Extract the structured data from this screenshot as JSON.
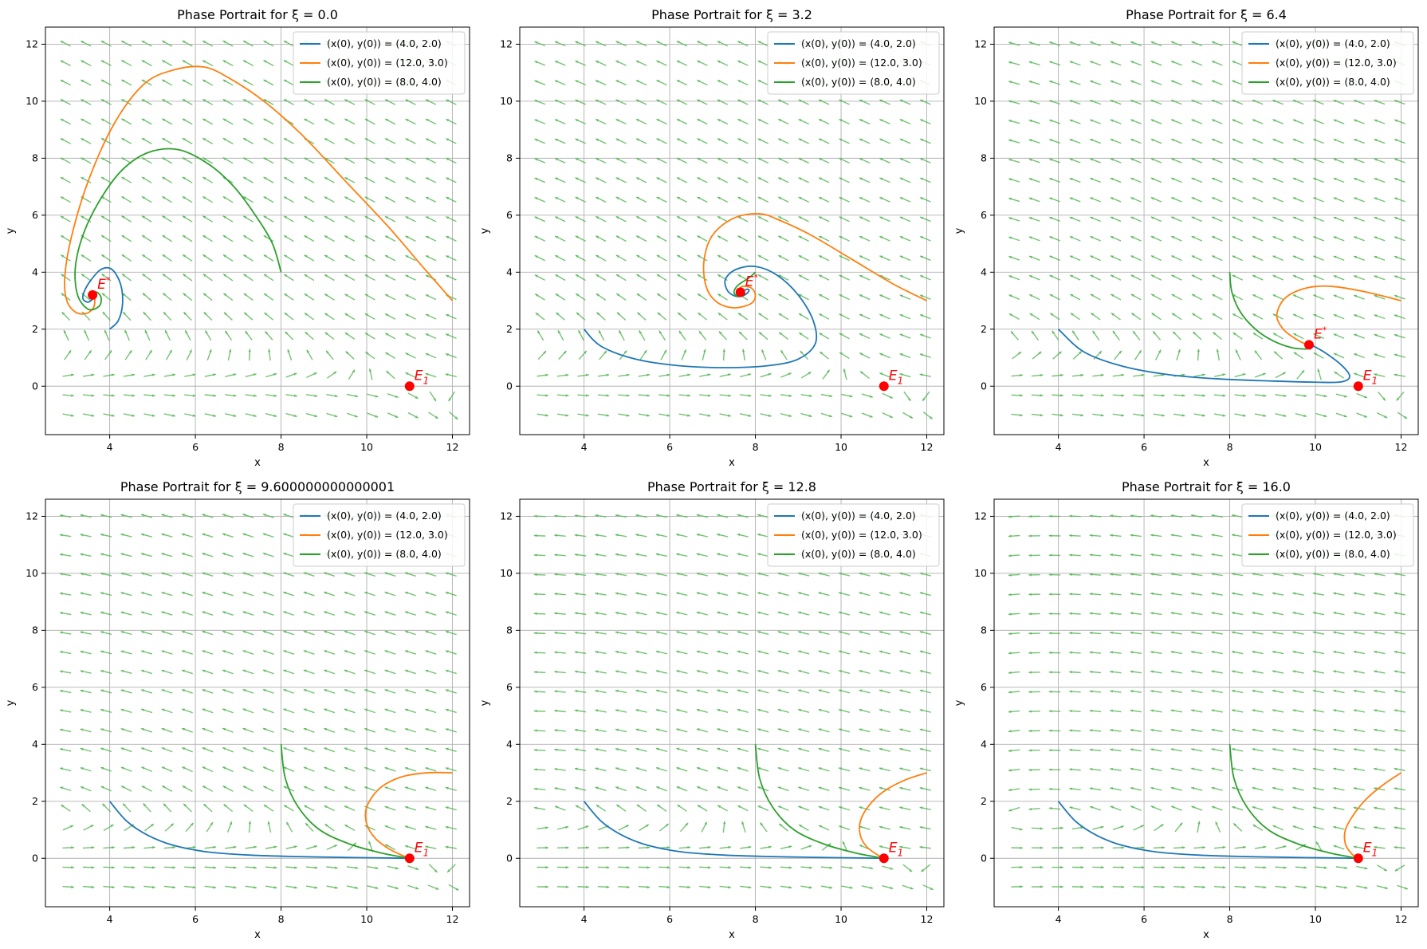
{
  "figure": {
    "colors": {
      "x0_4_y0_2": "#1f77b4",
      "x0_12_y0_3": "#ff7f0e",
      "x0_8_y0_4": "#2ca02c",
      "quiver": "#5cb85c",
      "equilibrium": "#ff0000",
      "grid": "#b0b0b0"
    }
  },
  "chart_data": [
    {
      "type": "line",
      "title": "Phase Portrait for ξ = 0.0",
      "xlabel": "x",
      "ylabel": "y",
      "xlim": [
        2.5,
        12.4
      ],
      "ylim": [
        -1.7,
        12.6
      ],
      "xticks": [
        "4",
        "6",
        "8",
        "10",
        "12"
      ],
      "yticks": [
        "0",
        "2",
        "4",
        "6",
        "8",
        "10",
        "12"
      ],
      "grid": true,
      "legend_location": "upper right",
      "series": [
        {
          "name": "(x(0), y(0)) = (4.0, 2.0)",
          "color": "#1f77b4",
          "x": [
            4.0,
            4.2,
            4.3,
            4.25,
            4.05,
            3.8,
            3.55,
            3.4,
            3.38,
            3.5,
            3.62,
            3.6,
            3.55
          ],
          "y": [
            2.0,
            2.3,
            2.9,
            3.6,
            4.1,
            4.1,
            3.7,
            3.3,
            3.05,
            2.95,
            3.1,
            3.25,
            3.2
          ]
        },
        {
          "name": "(x(0), y(0)) = (12.0, 3.0)",
          "color": "#ff7f0e",
          "x": [
            12.0,
            11.3,
            10.5,
            9.5,
            8.5,
            7.6,
            6.8,
            6.2,
            5.5,
            4.8,
            4.1,
            3.5,
            3.1,
            2.95,
            3.0,
            3.2,
            3.45,
            3.62,
            3.65,
            3.6
          ],
          "y": [
            3.0,
            4.2,
            5.6,
            7.2,
            8.8,
            10.0,
            10.8,
            11.2,
            11.1,
            10.6,
            9.2,
            7.2,
            5.2,
            3.8,
            3.0,
            2.6,
            2.55,
            2.75,
            3.05,
            3.2
          ]
        },
        {
          "name": "(x(0), y(0)) = (8.0, 4.0)",
          "color": "#2ca02c",
          "x": [
            8.0,
            7.8,
            7.4,
            6.9,
            6.3,
            5.6,
            4.9,
            4.3,
            3.8,
            3.4,
            3.2,
            3.25,
            3.5,
            3.75,
            3.8,
            3.7,
            3.6
          ],
          "y": [
            4.0,
            5.0,
            6.0,
            7.0,
            7.8,
            8.3,
            8.2,
            7.6,
            6.6,
            5.4,
            4.2,
            3.2,
            2.7,
            2.8,
            3.1,
            3.3,
            3.2
          ]
        }
      ],
      "equilibria": [
        {
          "label": "E*",
          "x": 3.6,
          "y": 3.2
        },
        {
          "label": "E1",
          "x": 11.0,
          "y": 0.0
        }
      ]
    },
    {
      "type": "line",
      "title": "Phase Portrait for ξ = 3.2",
      "xlabel": "x",
      "ylabel": "y",
      "xlim": [
        2.5,
        12.4
      ],
      "ylim": [
        -1.7,
        12.6
      ],
      "xticks": [
        "4",
        "6",
        "8",
        "10",
        "12"
      ],
      "yticks": [
        "0",
        "2",
        "4",
        "6",
        "8",
        "10",
        "12"
      ],
      "grid": true,
      "legend_location": "upper right",
      "series": [
        {
          "name": "(x(0), y(0)) = (4.0, 2.0)",
          "color": "#1f77b4",
          "x": [
            4.0,
            4.4,
            5.2,
            6.2,
            7.3,
            8.3,
            9.0,
            9.4,
            9.35,
            9.0,
            8.5,
            8.0,
            7.55,
            7.3,
            7.35,
            7.55,
            7.75,
            7.85,
            7.8,
            7.65
          ],
          "y": [
            2.0,
            1.4,
            0.95,
            0.72,
            0.65,
            0.72,
            0.95,
            1.5,
            2.3,
            3.2,
            3.9,
            4.2,
            4.1,
            3.75,
            3.35,
            3.15,
            3.2,
            3.35,
            3.4,
            3.3
          ]
        },
        {
          "name": "(x(0), y(0)) = (12.0, 3.0)",
          "color": "#ff7f0e",
          "x": [
            12.0,
            11.2,
            10.2,
            9.3,
            8.6,
            8.1,
            7.5,
            7.0,
            6.8,
            6.85,
            7.1,
            7.5,
            7.9,
            8.0,
            7.9,
            7.7,
            7.6,
            7.65
          ],
          "y": [
            3.0,
            3.6,
            4.5,
            5.3,
            5.8,
            6.05,
            5.9,
            5.3,
            4.4,
            3.5,
            2.95,
            2.75,
            2.9,
            3.2,
            3.45,
            3.5,
            3.35,
            3.3
          ]
        },
        {
          "name": "(x(0), y(0)) = (8.0, 4.0)",
          "color": "#2ca02c",
          "x": [
            8.0,
            7.85,
            7.6,
            7.5,
            7.6,
            7.75,
            7.7
          ],
          "y": [
            4.0,
            3.8,
            3.55,
            3.3,
            3.15,
            3.25,
            3.3
          ]
        }
      ],
      "equilibria": [
        {
          "label": "E*",
          "x": 7.65,
          "y": 3.3
        },
        {
          "label": "E1",
          "x": 11.0,
          "y": 0.0
        }
      ]
    },
    {
      "type": "line",
      "title": "Phase Portrait for ξ = 6.4",
      "xlabel": "x",
      "ylabel": "y",
      "xlim": [
        2.5,
        12.4
      ],
      "ylim": [
        -1.7,
        12.6
      ],
      "xticks": [
        "4",
        "6",
        "8",
        "10",
        "12"
      ],
      "yticks": [
        "0",
        "2",
        "4",
        "6",
        "8",
        "10",
        "12"
      ],
      "grid": true,
      "legend_location": "upper right",
      "series": [
        {
          "name": "(x(0), y(0)) = (4.0, 2.0)",
          "color": "#1f77b4",
          "x": [
            4.0,
            4.6,
            5.5,
            6.6,
            7.8,
            9.0,
            10.0,
            10.6,
            10.8,
            10.6,
            10.2,
            9.9
          ],
          "y": [
            2.0,
            1.2,
            0.7,
            0.4,
            0.25,
            0.18,
            0.14,
            0.15,
            0.35,
            0.75,
            1.2,
            1.45
          ]
        },
        {
          "name": "(x(0), y(0)) = (12.0, 3.0)",
          "color": "#ff7f0e",
          "x": [
            12.0,
            11.2,
            10.4,
            9.8,
            9.3,
            9.1,
            9.25,
            9.55,
            9.8
          ],
          "y": [
            3.0,
            3.3,
            3.5,
            3.45,
            3.1,
            2.5,
            2.0,
            1.65,
            1.45
          ]
        },
        {
          "name": "(x(0), y(0)) = (8.0, 4.0)",
          "color": "#2ca02c",
          "x": [
            8.0,
            8.05,
            8.25,
            8.6,
            9.0,
            9.45,
            9.8
          ],
          "y": [
            4.0,
            3.3,
            2.6,
            2.0,
            1.6,
            1.35,
            1.3
          ]
        }
      ],
      "equilibria": [
        {
          "label": "E*",
          "x": 9.85,
          "y": 1.45
        },
        {
          "label": "E1",
          "x": 11.0,
          "y": 0.0
        }
      ]
    },
    {
      "type": "line",
      "title": "Phase Portrait for ξ = 9.600000000000001",
      "xlabel": "x",
      "ylabel": "y",
      "xlim": [
        2.5,
        12.4
      ],
      "ylim": [
        -1.7,
        12.6
      ],
      "xticks": [
        "4",
        "6",
        "8",
        "10",
        "12"
      ],
      "yticks": [
        "0",
        "2",
        "4",
        "6",
        "8",
        "10",
        "12"
      ],
      "grid": true,
      "legend_location": "upper right",
      "series": [
        {
          "name": "(x(0), y(0)) = (4.0, 2.0)",
          "color": "#1f77b4",
          "x": [
            4.0,
            4.4,
            4.9,
            5.5,
            6.3,
            7.3,
            8.4,
            9.5,
            10.5,
            11.0
          ],
          "y": [
            2.0,
            1.3,
            0.8,
            0.45,
            0.22,
            0.11,
            0.06,
            0.03,
            0.01,
            0.0
          ]
        },
        {
          "name": "(x(0), y(0)) = (12.0, 3.0)",
          "color": "#ff7f0e",
          "x": [
            12.0,
            11.4,
            10.8,
            10.3,
            10.0,
            10.0,
            10.2,
            10.5,
            10.8,
            11.0
          ],
          "y": [
            3.0,
            3.0,
            2.85,
            2.45,
            1.8,
            1.2,
            0.7,
            0.35,
            0.12,
            0.0
          ]
        },
        {
          "name": "(x(0), y(0)) = (8.0, 4.0)",
          "color": "#2ca02c",
          "x": [
            8.0,
            8.1,
            8.4,
            8.9,
            9.6,
            10.3,
            10.8,
            11.0
          ],
          "y": [
            4.0,
            2.8,
            1.8,
            1.0,
            0.5,
            0.2,
            0.05,
            0.0
          ]
        }
      ],
      "equilibria": [
        {
          "label": "E1",
          "x": 11.0,
          "y": 0.0
        }
      ]
    },
    {
      "type": "line",
      "title": "Phase Portrait for ξ = 12.8",
      "xlabel": "x",
      "ylabel": "y",
      "xlim": [
        2.5,
        12.4
      ],
      "ylim": [
        -1.7,
        12.6
      ],
      "xticks": [
        "4",
        "6",
        "8",
        "10",
        "12"
      ],
      "yticks": [
        "0",
        "2",
        "4",
        "6",
        "8",
        "10",
        "12"
      ],
      "grid": true,
      "legend_location": "upper right",
      "series": [
        {
          "name": "(x(0), y(0)) = (4.0, 2.0)",
          "color": "#1f77b4",
          "x": [
            4.0,
            4.4,
            4.9,
            5.5,
            6.3,
            7.3,
            8.4,
            9.5,
            10.5,
            11.0
          ],
          "y": [
            2.0,
            1.3,
            0.8,
            0.45,
            0.22,
            0.11,
            0.06,
            0.03,
            0.01,
            0.0
          ]
        },
        {
          "name": "(x(0), y(0)) = (12.0, 3.0)",
          "color": "#ff7f0e",
          "x": [
            12.0,
            11.5,
            11.0,
            10.65,
            10.45,
            10.45,
            10.6,
            10.85,
            11.0
          ],
          "y": [
            3.0,
            2.75,
            2.35,
            1.85,
            1.3,
            0.8,
            0.4,
            0.12,
            0.0
          ]
        },
        {
          "name": "(x(0), y(0)) = (8.0, 4.0)",
          "color": "#2ca02c",
          "x": [
            8.0,
            8.1,
            8.4,
            8.9,
            9.6,
            10.3,
            10.8,
            11.0
          ],
          "y": [
            4.0,
            2.8,
            1.8,
            1.0,
            0.5,
            0.2,
            0.05,
            0.0
          ]
        }
      ],
      "equilibria": [
        {
          "label": "E1",
          "x": 11.0,
          "y": 0.0
        }
      ]
    },
    {
      "type": "line",
      "title": "Phase Portrait for ξ = 16.0",
      "xlabel": "x",
      "ylabel": "y",
      "xlim": [
        2.5,
        12.4
      ],
      "ylim": [
        -1.7,
        12.6
      ],
      "xticks": [
        "4",
        "6",
        "8",
        "10",
        "12"
      ],
      "yticks": [
        "0",
        "2",
        "4",
        "6",
        "8",
        "10",
        "12"
      ],
      "grid": true,
      "legend_location": "upper right",
      "series": [
        {
          "name": "(x(0), y(0)) = (4.0, 2.0)",
          "color": "#1f77b4",
          "x": [
            4.0,
            4.4,
            4.9,
            5.5,
            6.3,
            7.3,
            8.4,
            9.5,
            10.5,
            11.0
          ],
          "y": [
            2.0,
            1.3,
            0.8,
            0.45,
            0.22,
            0.11,
            0.06,
            0.03,
            0.01,
            0.0
          ]
        },
        {
          "name": "(x(0), y(0)) = (12.0, 3.0)",
          "color": "#ff7f0e",
          "x": [
            12.0,
            11.6,
            11.2,
            10.9,
            10.7,
            10.7,
            10.85,
            11.0
          ],
          "y": [
            3.0,
            2.6,
            2.1,
            1.55,
            1.0,
            0.5,
            0.15,
            0.0
          ]
        },
        {
          "name": "(x(0), y(0)) = (8.0, 4.0)",
          "color": "#2ca02c",
          "x": [
            8.0,
            8.1,
            8.4,
            8.9,
            9.6,
            10.3,
            10.8,
            11.0
          ],
          "y": [
            4.0,
            2.8,
            1.8,
            1.0,
            0.5,
            0.2,
            0.05,
            0.0
          ]
        }
      ],
      "equilibria": [
        {
          "label": "E1",
          "x": 11.0,
          "y": 0.0
        }
      ]
    }
  ]
}
